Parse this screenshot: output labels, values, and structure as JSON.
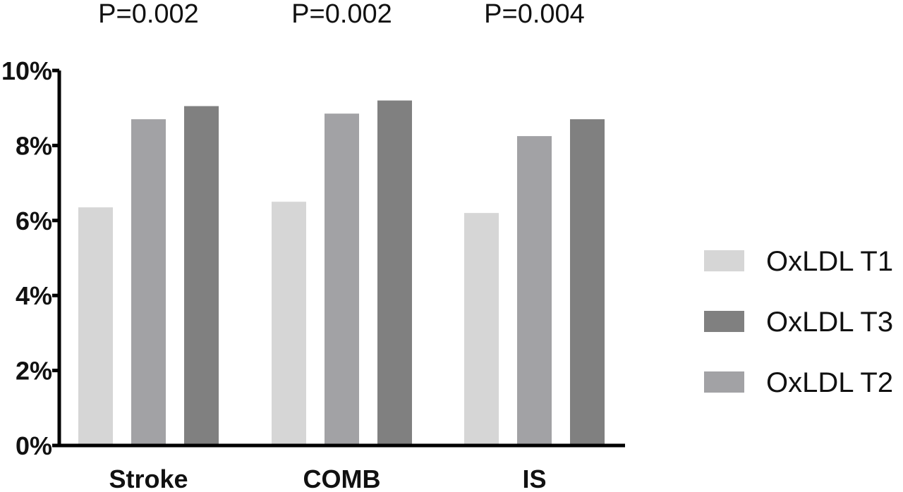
{
  "chart_data": {
    "type": "bar",
    "categories": [
      "Stroke",
      "COMB",
      "IS"
    ],
    "series": [
      {
        "name": "OxLDL T1",
        "color": "#d6d6d6",
        "values": [
          6.35,
          6.5,
          6.2
        ]
      },
      {
        "name": "OxLDL T2",
        "color": "#a2a2a5",
        "values": [
          8.7,
          8.85,
          8.25
        ]
      },
      {
        "name": "OxLDL T3",
        "color": "#808080",
        "values": [
          9.05,
          9.2,
          8.7
        ]
      }
    ],
    "ylim": [
      0,
      10
    ],
    "yticks": [
      0,
      2,
      4,
      6,
      8,
      10
    ],
    "ytick_labels": [
      "0%",
      "2%",
      "4%",
      "6%",
      "8%",
      "10%"
    ],
    "annotations": [
      "P=0.002",
      "P=0.002",
      "P=0.004"
    ],
    "legend": {
      "placement": "right",
      "order": [
        "OxLDL T1",
        "OxLDL T3",
        "OxLDL T2"
      ]
    },
    "grid": false
  }
}
